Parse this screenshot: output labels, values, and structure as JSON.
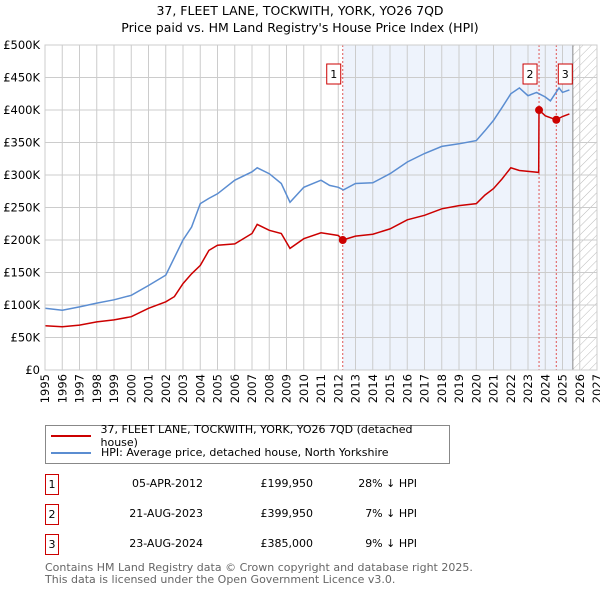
{
  "chart_data": {
    "type": "line",
    "title": "37, FLEET LANE, TOCKWITH, YORK, YO26 7QD",
    "subtitle": "Price paid vs. HM Land Registry's House Price Index (HPI)",
    "xlim": [
      1995,
      2027
    ],
    "ylim": [
      0,
      500000
    ],
    "x_ticks": [
      "1995",
      "1996",
      "1997",
      "1998",
      "1999",
      "2000",
      "2001",
      "2002",
      "2003",
      "2004",
      "2005",
      "2006",
      "2007",
      "2008",
      "2009",
      "2010",
      "2011",
      "2012",
      "2013",
      "2014",
      "2015",
      "2016",
      "2017",
      "2018",
      "2019",
      "2020",
      "2021",
      "2022",
      "2023",
      "2024",
      "2025",
      "2026",
      "2027"
    ],
    "y_ticks": [
      {
        "v": 0,
        "label": "£0"
      },
      {
        "v": 50000,
        "label": "£50K"
      },
      {
        "v": 100000,
        "label": "£100K"
      },
      {
        "v": 150000,
        "label": "£150K"
      },
      {
        "v": 200000,
        "label": "£200K"
      },
      {
        "v": 250000,
        "label": "£250K"
      },
      {
        "v": 300000,
        "label": "£300K"
      },
      {
        "v": 350000,
        "label": "£350K"
      },
      {
        "v": 400000,
        "label": "£400K"
      },
      {
        "v": 450000,
        "label": "£450K"
      },
      {
        "v": 500000,
        "label": "£500K"
      }
    ],
    "grid": true,
    "shaded_period": [
      2012.26,
      2025.6
    ],
    "forecast_hatch_from": 2025.6,
    "series": [
      {
        "name": "37, FLEET LANE, TOCKWITH, YORK, YO26 7QD (detached house)",
        "color": "#cc0000",
        "x": [
          1995,
          1996,
          1997,
          1998,
          1999,
          2000,
          2001,
          2002,
          2002.5,
          2003,
          2003.5,
          2004,
          2004.5,
          2005,
          2006,
          2007,
          2007.3,
          2008,
          2008.7,
          2009.2,
          2010,
          2011,
          2012,
          2012.26,
          2013,
          2014,
          2015,
          2016,
          2017,
          2018,
          2019,
          2020,
          2020.5,
          2021,
          2021.5,
          2022,
          2022.5,
          2023.62,
          2023.64,
          2024,
          2024.64,
          2025,
          2025.4
        ],
        "y": [
          68000,
          66500,
          69000,
          74000,
          77000,
          82000,
          95000,
          105000,
          113000,
          133000,
          148000,
          161000,
          184000,
          192000,
          194000,
          210000,
          224000,
          215000,
          210000,
          187000,
          202000,
          211000,
          207000,
          199950,
          206000,
          209000,
          217000,
          231000,
          238000,
          248000,
          253000,
          256000,
          269000,
          279000,
          294000,
          311000,
          307000,
          304000,
          399950,
          391000,
          385000,
          390000,
          394000
        ]
      },
      {
        "name": "HPI: Average price, detached house, North Yorkshire",
        "color": "#5b8dd1",
        "x": [
          1995,
          1996,
          1997,
          1998,
          1999,
          2000,
          2001,
          2002,
          2003,
          2003.5,
          2004,
          2004.5,
          2005,
          2006,
          2007,
          2007.3,
          2008,
          2008.7,
          2009.2,
          2010,
          2011,
          2011.5,
          2012,
          2012.3,
          2013,
          2014,
          2015,
          2016,
          2017,
          2018,
          2019,
          2020,
          2020.5,
          2021,
          2021.5,
          2022,
          2022.5,
          2023,
          2023.5,
          2024,
          2024.3,
          2024.8,
          2025,
          2025.4
        ],
        "y": [
          95000,
          92000,
          97000,
          103000,
          108000,
          115000,
          130000,
          146000,
          200000,
          220000,
          256000,
          264000,
          271000,
          292000,
          305000,
          311000,
          302000,
          287000,
          258000,
          281000,
          292000,
          284000,
          281000,
          277000,
          287000,
          288000,
          302000,
          320000,
          333000,
          344000,
          348000,
          353000,
          368000,
          384000,
          404000,
          425000,
          434000,
          422000,
          427000,
          420000,
          414000,
          434000,
          427000,
          431000
        ]
      }
    ],
    "sales": [
      {
        "id": "1",
        "x": 2012.26,
        "y": 199950
      },
      {
        "id": "2",
        "x": 2023.64,
        "y": 399950
      },
      {
        "id": "3",
        "x": 2024.64,
        "y": 385000
      }
    ]
  },
  "header": {
    "title": "37, FLEET LANE, TOCKWITH, YORK, YO26 7QD",
    "subtitle": "Price paid vs. HM Land Registry's House Price Index (HPI)"
  },
  "legend": {
    "property": "37, FLEET LANE, TOCKWITH, YORK, YO26 7QD (detached house)",
    "hpi": "HPI: Average price, detached house, North Yorkshire"
  },
  "transactions": [
    {
      "num": "1",
      "date": "05-APR-2012",
      "price": "£199,950",
      "hpi": "28% ↓ HPI"
    },
    {
      "num": "2",
      "date": "21-AUG-2023",
      "price": "£399,950",
      "hpi": "7% ↓ HPI"
    },
    {
      "num": "3",
      "date": "23-AUG-2024",
      "price": "£385,000",
      "hpi": "9% ↓ HPI"
    }
  ],
  "footer": {
    "line1": "Contains HM Land Registry data © Crown copyright and database right 2025.",
    "line2": "This data is licensed under the Open Government Licence v3.0."
  }
}
